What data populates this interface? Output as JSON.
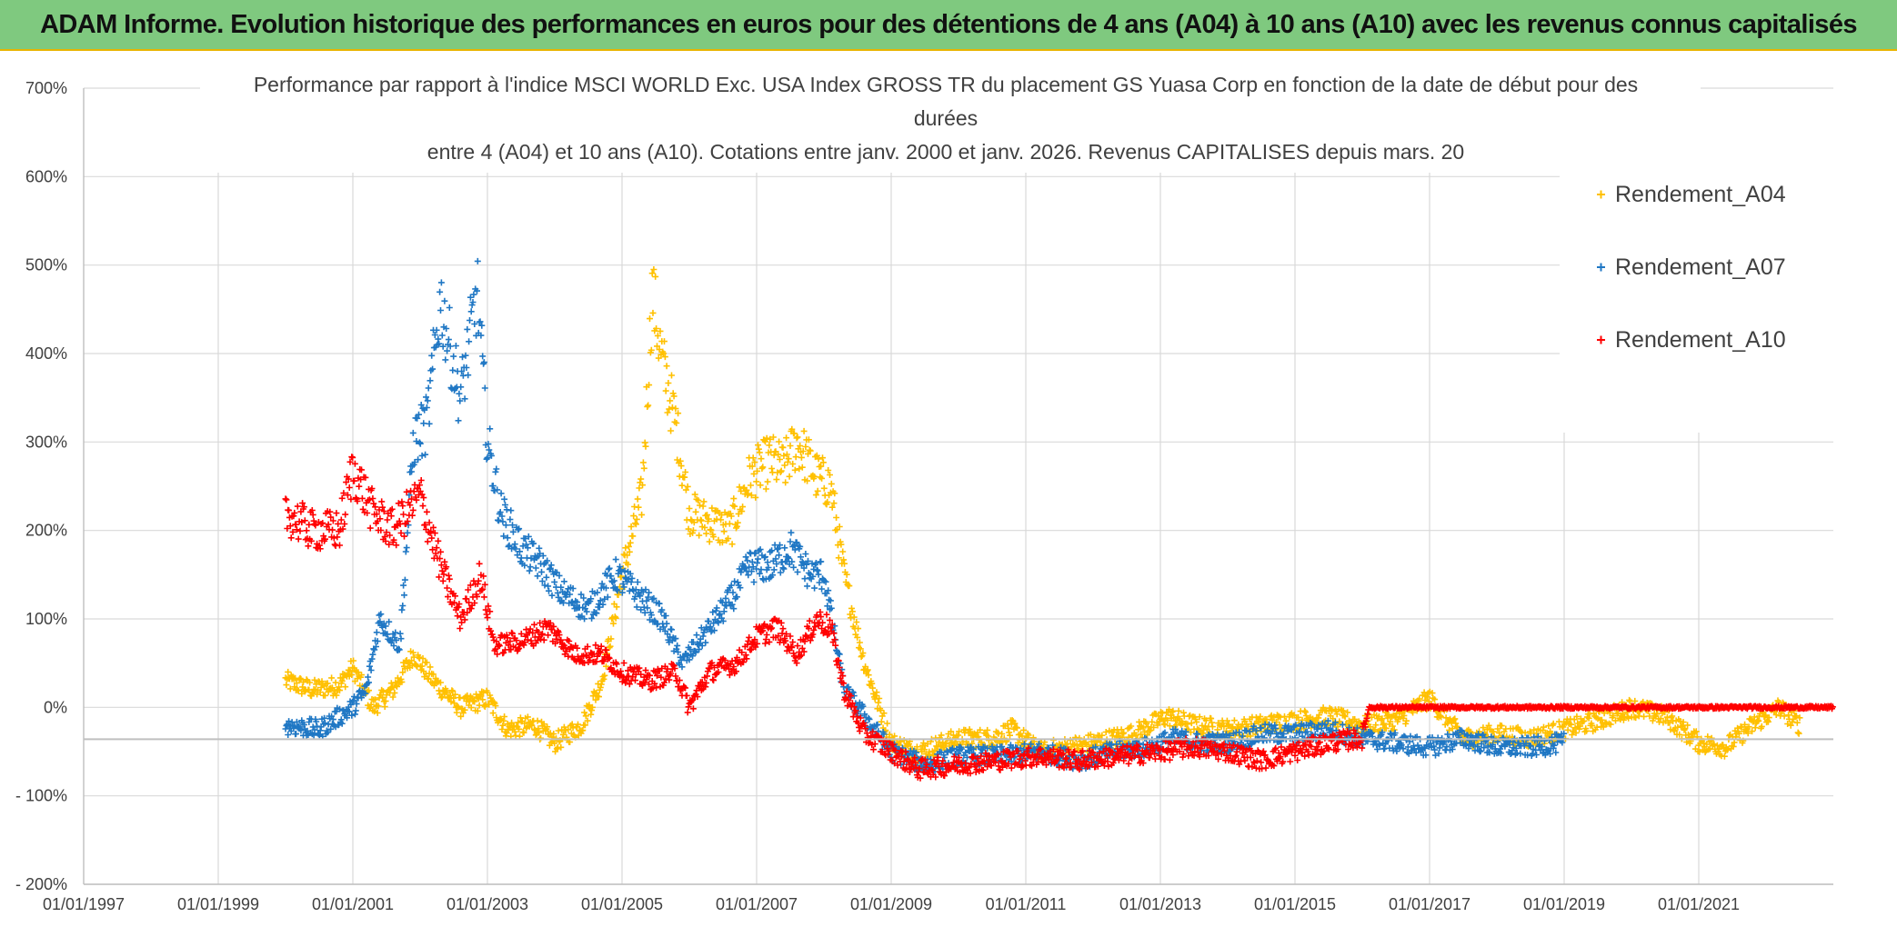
{
  "banner": {
    "title": "ADAM Informe. Evolution historique des performances en euros pour des détentions de 4 ans (A04) à 10 ans (A10) avec les revenus connus capitalisés"
  },
  "colors": {
    "banner_bg": "#7fc97f",
    "a04": "#ffc000",
    "a07": "#1f77c4",
    "a10": "#ff0000",
    "grid": "#d9d9d9",
    "text": "#404040"
  },
  "chart_data": {
    "type": "scatter",
    "title_lines": [
      "Performance par rapport à l'indice MSCI WORLD Exc. USA Index GROSS TR  du placement GS Yuasa Corp en fonction de la date de début pour des",
      "durées",
      "entre 4 (A04) et 10 ans (A10). Cotations entre janv. 2000 et janv. 2026. Revenus CAPITALISES depuis mars. 20"
    ],
    "x_axis": {
      "type": "date",
      "range": [
        "1997-01-01",
        "2023-01-01"
      ],
      "tick_labels": [
        "01/01/1997",
        "01/01/1999",
        "01/01/2001",
        "01/01/2003",
        "01/01/2005",
        "01/01/2007",
        "01/01/2009",
        "01/01/2011",
        "01/01/2013",
        "01/01/2015",
        "01/01/2017",
        "01/01/2019",
        "01/01/2021"
      ],
      "tick_values": [
        1997,
        1999,
        2001,
        2003,
        2005,
        2007,
        2009,
        2011,
        2013,
        2015,
        2017,
        2019,
        2021
      ]
    },
    "y_axis": {
      "range": [
        -200,
        700
      ],
      "unit": "%",
      "tick_values": [
        700,
        600,
        500,
        400,
        300,
        200,
        100,
        0,
        -100,
        -200
      ],
      "tick_labels": [
        "700%",
        "600%",
        "500%",
        "400%",
        "300%",
        "200%",
        "100%",
        "0%",
        "- 100%",
        "- 200%"
      ]
    },
    "legend": {
      "position": "top-right",
      "marker": "+"
    },
    "series": [
      {
        "name": "Rendement_A04",
        "color": "#ffc000",
        "anchors": [
          [
            2000.0,
            30
          ],
          [
            2000.4,
            20
          ],
          [
            2000.8,
            25
          ],
          [
            2001.0,
            45
          ],
          [
            2001.3,
            0
          ],
          [
            2001.6,
            20
          ],
          [
            2001.9,
            60
          ],
          [
            2002.2,
            30
          ],
          [
            2002.6,
            0
          ],
          [
            2003.0,
            10
          ],
          [
            2003.3,
            -25
          ],
          [
            2003.7,
            -20
          ],
          [
            2004.0,
            -40
          ],
          [
            2004.4,
            -20
          ],
          [
            2004.7,
            30
          ],
          [
            2005.0,
            150
          ],
          [
            2005.3,
            240
          ],
          [
            2005.45,
            470
          ],
          [
            2005.6,
            390
          ],
          [
            2005.8,
            320
          ],
          [
            2006.0,
            220
          ],
          [
            2006.3,
            210
          ],
          [
            2006.6,
            200
          ],
          [
            2006.9,
            260
          ],
          [
            2007.2,
            280
          ],
          [
            2007.4,
            270
          ],
          [
            2007.6,
            300
          ],
          [
            2007.9,
            260
          ],
          [
            2008.1,
            250
          ],
          [
            2008.3,
            150
          ],
          [
            2008.6,
            50
          ],
          [
            2009.0,
            -40
          ],
          [
            2009.4,
            -50
          ],
          [
            2010.0,
            -35
          ],
          [
            2010.5,
            -35
          ],
          [
            2010.8,
            -25
          ],
          [
            2011.2,
            -50
          ],
          [
            2012.0,
            -40
          ],
          [
            2012.6,
            -30
          ],
          [
            2013.1,
            -10
          ],
          [
            2013.5,
            -20
          ],
          [
            2014.0,
            -25
          ],
          [
            2014.5,
            -20
          ],
          [
            2015.0,
            -15
          ],
          [
            2015.5,
            -10
          ],
          [
            2016.0,
            -20
          ],
          [
            2016.5,
            -15
          ],
          [
            2017.0,
            10
          ],
          [
            2017.5,
            -35
          ],
          [
            2018.0,
            -30
          ],
          [
            2018.5,
            -35
          ],
          [
            2019.0,
            -25
          ],
          [
            2019.5,
            -15
          ],
          [
            2020.0,
            0
          ],
          [
            2020.5,
            -10
          ],
          [
            2021.0,
            -40
          ],
          [
            2021.4,
            -45
          ],
          [
            2021.8,
            -20
          ],
          [
            2022.2,
            0
          ],
          [
            2022.5,
            -20
          ]
        ]
      },
      {
        "name": "Rendement_A07",
        "color": "#1f77c4",
        "anchors": [
          [
            2000.0,
            -20
          ],
          [
            2000.5,
            -25
          ],
          [
            2001.0,
            0
          ],
          [
            2001.2,
            20
          ],
          [
            2001.4,
            100
          ],
          [
            2001.7,
            70
          ],
          [
            2001.9,
            300
          ],
          [
            2002.1,
            320
          ],
          [
            2002.3,
            460
          ],
          [
            2002.6,
            350
          ],
          [
            2002.85,
            470
          ],
          [
            2003.0,
            300
          ],
          [
            2003.2,
            220
          ],
          [
            2003.5,
            180
          ],
          [
            2003.8,
            160
          ],
          [
            2004.1,
            130
          ],
          [
            2004.5,
            110
          ],
          [
            2004.9,
            150
          ],
          [
            2005.2,
            130
          ],
          [
            2005.6,
            100
          ],
          [
            2005.9,
            50
          ],
          [
            2006.2,
            80
          ],
          [
            2006.6,
            120
          ],
          [
            2006.9,
            160
          ],
          [
            2007.2,
            160
          ],
          [
            2007.5,
            180
          ],
          [
            2007.8,
            150
          ],
          [
            2008.0,
            150
          ],
          [
            2008.3,
            20
          ],
          [
            2008.7,
            -20
          ],
          [
            2009.0,
            -50
          ],
          [
            2009.5,
            -65
          ],
          [
            2010.0,
            -55
          ],
          [
            2010.6,
            -55
          ],
          [
            2011.2,
            -50
          ],
          [
            2011.8,
            -60
          ],
          [
            2012.3,
            -50
          ],
          [
            2012.8,
            -45
          ],
          [
            2013.2,
            -35
          ],
          [
            2013.6,
            -40
          ],
          [
            2014.0,
            -40
          ],
          [
            2014.5,
            -30
          ],
          [
            2015.0,
            -30
          ],
          [
            2015.5,
            -25
          ],
          [
            2016.0,
            -35
          ],
          [
            2016.5,
            -40
          ],
          [
            2017.0,
            -45
          ],
          [
            2017.5,
            -35
          ],
          [
            2018.0,
            -45
          ],
          [
            2018.5,
            -45
          ],
          [
            2019.0,
            -40
          ]
        ]
      },
      {
        "name": "Rendement_A10",
        "color": "#ff0000",
        "anchors": [
          [
            2000.0,
            220
          ],
          [
            2000.4,
            200
          ],
          [
            2000.8,
            200
          ],
          [
            2001.0,
            270
          ],
          [
            2001.3,
            220
          ],
          [
            2001.6,
            200
          ],
          [
            2002.0,
            240
          ],
          [
            2002.3,
            160
          ],
          [
            2002.6,
            100
          ],
          [
            2002.9,
            150
          ],
          [
            2003.1,
            70
          ],
          [
            2003.5,
            75
          ],
          [
            2003.9,
            90
          ],
          [
            2004.3,
            60
          ],
          [
            2004.7,
            60
          ],
          [
            2005.0,
            40
          ],
          [
            2005.4,
            30
          ],
          [
            2005.8,
            40
          ],
          [
            2006.0,
            0
          ],
          [
            2006.3,
            40
          ],
          [
            2006.7,
            50
          ],
          [
            2007.0,
            80
          ],
          [
            2007.3,
            90
          ],
          [
            2007.6,
            60
          ],
          [
            2007.9,
            100
          ],
          [
            2008.1,
            90
          ],
          [
            2008.3,
            20
          ],
          [
            2008.6,
            -30
          ],
          [
            2009.0,
            -50
          ],
          [
            2009.4,
            -70
          ],
          [
            2010.0,
            -65
          ],
          [
            2010.6,
            -60
          ],
          [
            2011.2,
            -55
          ],
          [
            2011.8,
            -60
          ],
          [
            2012.4,
            -55
          ],
          [
            2013.0,
            -50
          ],
          [
            2013.5,
            -45
          ],
          [
            2014.0,
            -50
          ],
          [
            2014.5,
            -60
          ],
          [
            2015.0,
            -50
          ],
          [
            2015.5,
            -40
          ],
          [
            2016.0,
            -35
          ],
          [
            2016.1,
            0
          ],
          [
            2017.0,
            0
          ],
          [
            2018.0,
            0
          ],
          [
            2019.0,
            0
          ],
          [
            2020.0,
            0
          ],
          [
            2021.0,
            0
          ],
          [
            2022.0,
            0
          ],
          [
            2023.0,
            0
          ]
        ]
      }
    ]
  }
}
